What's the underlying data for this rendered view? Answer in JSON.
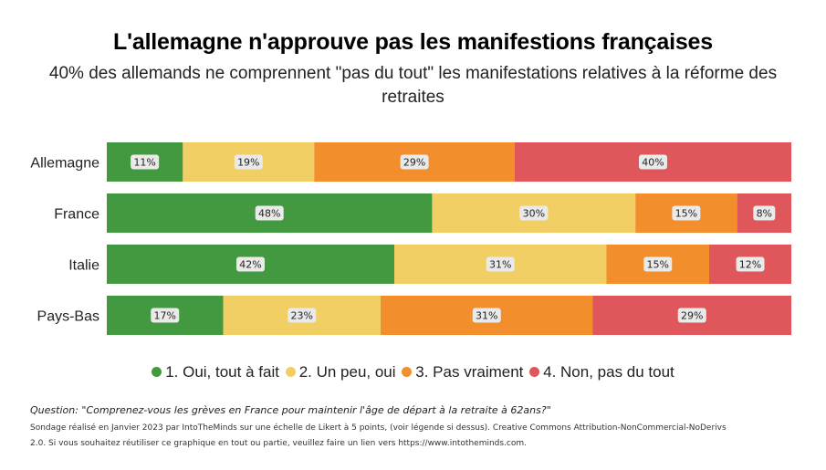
{
  "header": {
    "title": "L'allemagne n'approuve pas les manifestions françaises",
    "subtitle": "40% des allemands ne comprennent \"pas du tout\" les manifestations relatives à la réforme des retraites"
  },
  "chart_data": {
    "type": "bar",
    "orientation": "horizontal",
    "stacked": true,
    "normalized": true,
    "categories": [
      "Allemagne",
      "France",
      "Italie",
      "Pays-Bas"
    ],
    "series": [
      {
        "name": "1. Oui, tout à fait",
        "color": "#43993f",
        "values": [
          11,
          48,
          42,
          17
        ],
        "labels": [
          "11%",
          "48%",
          "42%",
          "17%"
        ]
      },
      {
        "name": "2. Un peu, oui",
        "color": "#f1cf65",
        "values": [
          19,
          30,
          31,
          23
        ],
        "labels": [
          "19%",
          "30%",
          "31%",
          "23%"
        ]
      },
      {
        "name": "3. Pas vraiment",
        "color": "#f28e2c",
        "values": [
          29,
          15,
          15,
          31
        ],
        "labels": [
          "29%",
          "15%",
          "15%",
          "31%"
        ]
      },
      {
        "name": "4. Non, pas du tout",
        "color": "#e0575b",
        "values": [
          40,
          8,
          12,
          29
        ],
        "labels": [
          "40%",
          "8%",
          "12%",
          "29%"
        ]
      }
    ],
    "legend_position": "bottom",
    "grid": false,
    "title": "L'allemagne n'approuve pas les manifestions françaises",
    "xlabel": "",
    "ylabel": ""
  },
  "footer": {
    "question": "Question: \"Comprenez-vous les grèves en France pour maintenir l'âge de départ à la retraite à 62ans?\"",
    "note": "Sondage réalisé en Janvier 2023 par IntoTheMinds sur une échelle de Likert à 5 points, (voir légende si dessus). Creative Commons Attribution-NonCommercial-NoDerivs 2.0. Si vous souhaitez réutiliser ce graphique en tout ou partie, veuillez faire un lien vers https://www.intotheminds.com."
  }
}
